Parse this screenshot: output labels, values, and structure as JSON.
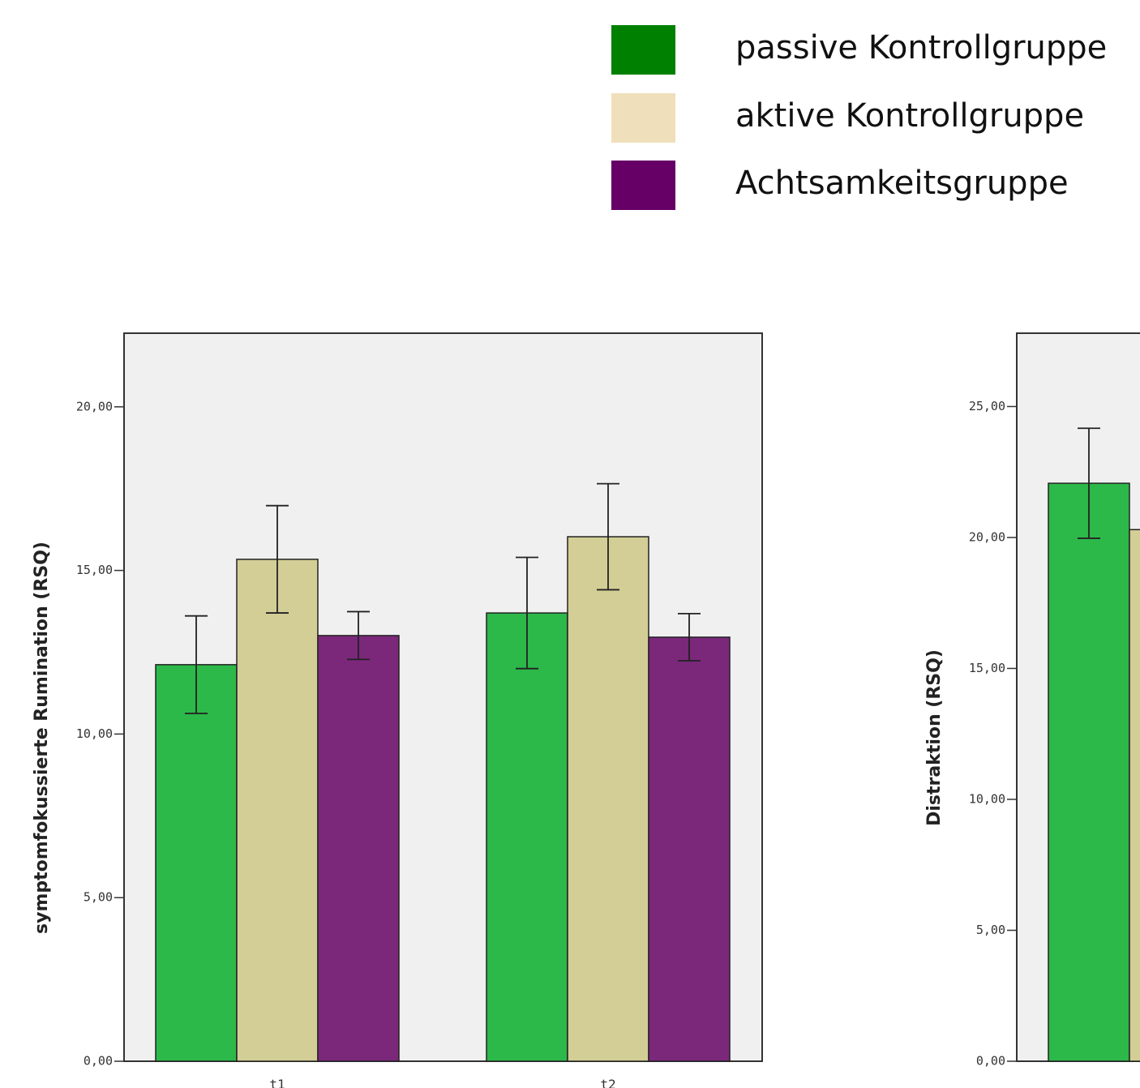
{
  "chart_data": [
    {
      "type": "bar",
      "ylabel": "symptomfokussierte Rumination (RSQ)",
      "categories": [
        "t1",
        "t2"
      ],
      "series": [
        {
          "name": "passive Kontrollgruppe",
          "color": "#2db84a",
          "legend_color": "#008000",
          "values": [
            12.12,
            13.7
          ],
          "errors": [
            1.49,
            1.7
          ]
        },
        {
          "name": "aktive Kontrollgruppe",
          "color": "#d3ce96",
          "legend_color": "#efe0bb",
          "values": [
            15.34,
            16.03
          ],
          "errors": [
            1.64,
            1.62
          ]
        },
        {
          "name": "Achtsamkeitsgruppe",
          "color": "#7b287b",
          "legend_color": "#660066",
          "values": [
            13.01,
            12.96
          ],
          "errors": [
            0.73,
            0.72
          ]
        }
      ],
      "ylim": [
        0,
        22.25
      ],
      "yticks": [
        {
          "value": 0,
          "label": "0,00"
        },
        {
          "value": 5,
          "label": "5,00"
        },
        {
          "value": 10,
          "label": "10,00"
        },
        {
          "value": 15,
          "label": "15,00"
        },
        {
          "value": 20,
          "label": "20,00"
        }
      ]
    },
    {
      "type": "bar",
      "ylabel": "Distraktion (RSQ)",
      "categories": [
        null
      ],
      "series": [
        {
          "name": "passive Kontrollgruppe",
          "color": "#2db84a",
          "values": [
            22.07
          ],
          "errors": [
            2.1
          ]
        },
        {
          "name": "aktive Kontrollgruppe",
          "color": "#d3ce96",
          "values": [
            20.3
          ]
        }
      ],
      "ylim": [
        0,
        27.8
      ],
      "yticks": [
        {
          "value": 0,
          "label": "0,00"
        },
        {
          "value": 5,
          "label": "5,00"
        },
        {
          "value": 10,
          "label": "10,00"
        },
        {
          "value": 15,
          "label": "15,00"
        },
        {
          "value": 20,
          "label": "20,00"
        },
        {
          "value": 25,
          "label": "25,00"
        }
      ]
    }
  ]
}
